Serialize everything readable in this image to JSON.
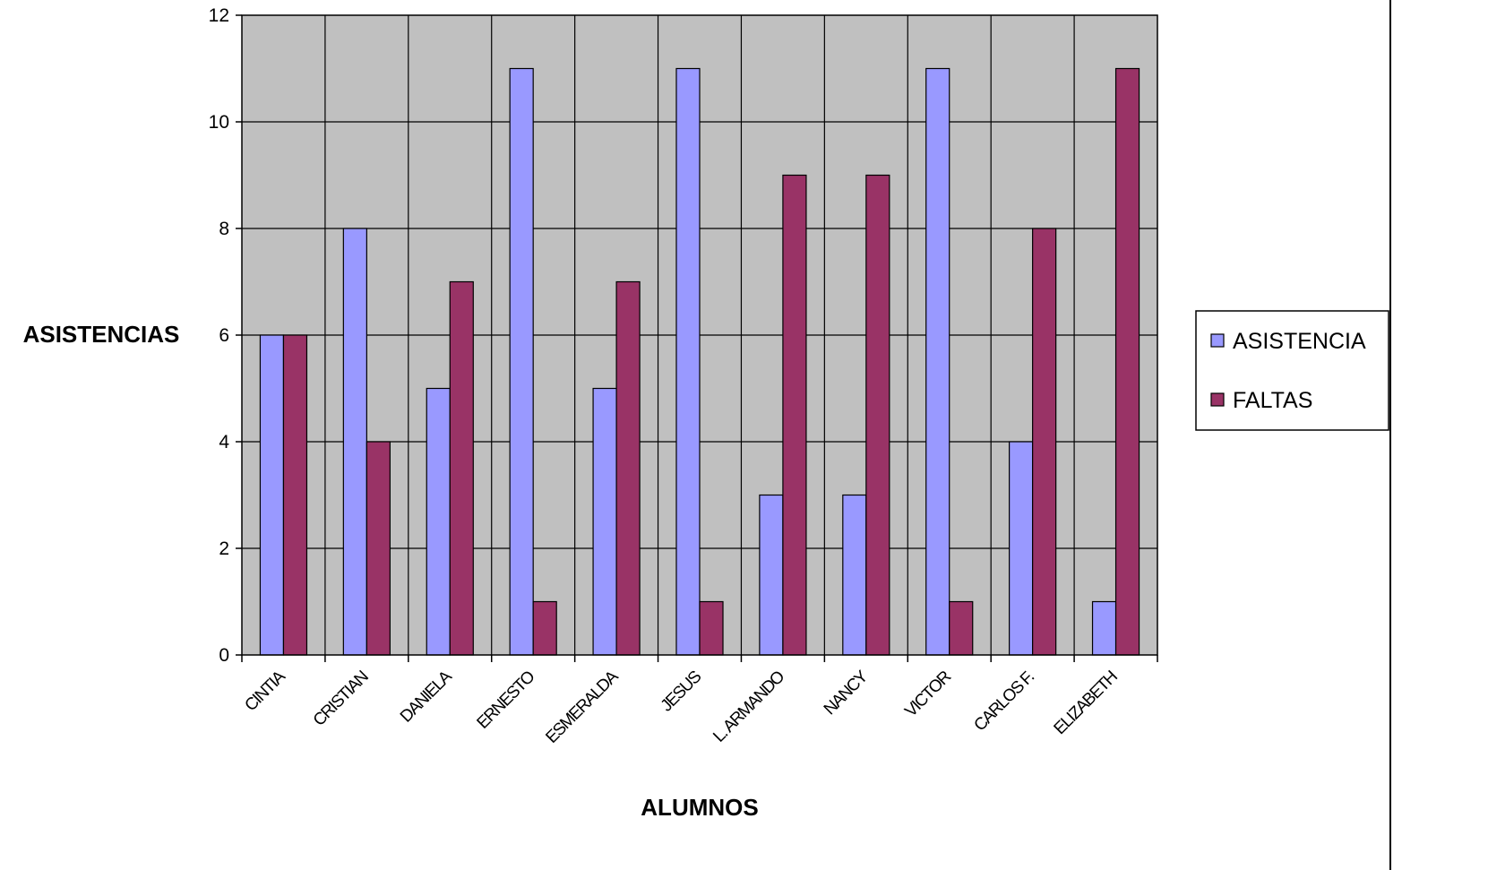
{
  "chart_data": {
    "type": "bar",
    "categories": [
      "CINTIA",
      "CRISTIAN",
      "DANIELA",
      "ERNESTO",
      "ESMERALDA",
      "JESUS",
      "L. ARMANDO",
      "NANCY",
      "VICTOR",
      "CARLOS F.",
      "ELIZABETH"
    ],
    "series": [
      {
        "name": "ASISTENCIA",
        "color": "#9999ff",
        "values": [
          6,
          8,
          5,
          11,
          5,
          11,
          3,
          3,
          11,
          4,
          1
        ]
      },
      {
        "name": "FALTAS",
        "color": "#993366",
        "values": [
          6,
          4,
          7,
          1,
          7,
          1,
          9,
          9,
          1,
          8,
          11
        ]
      }
    ],
    "ylabel": "ASISTENCIAS",
    "xlabel": "ALUMNOS",
    "ylim": [
      0,
      12
    ],
    "yticks": [
      0,
      2,
      4,
      6,
      8,
      10,
      12
    ],
    "grid": true,
    "plot_background": "#c0c0c0",
    "legend_position": "right"
  }
}
